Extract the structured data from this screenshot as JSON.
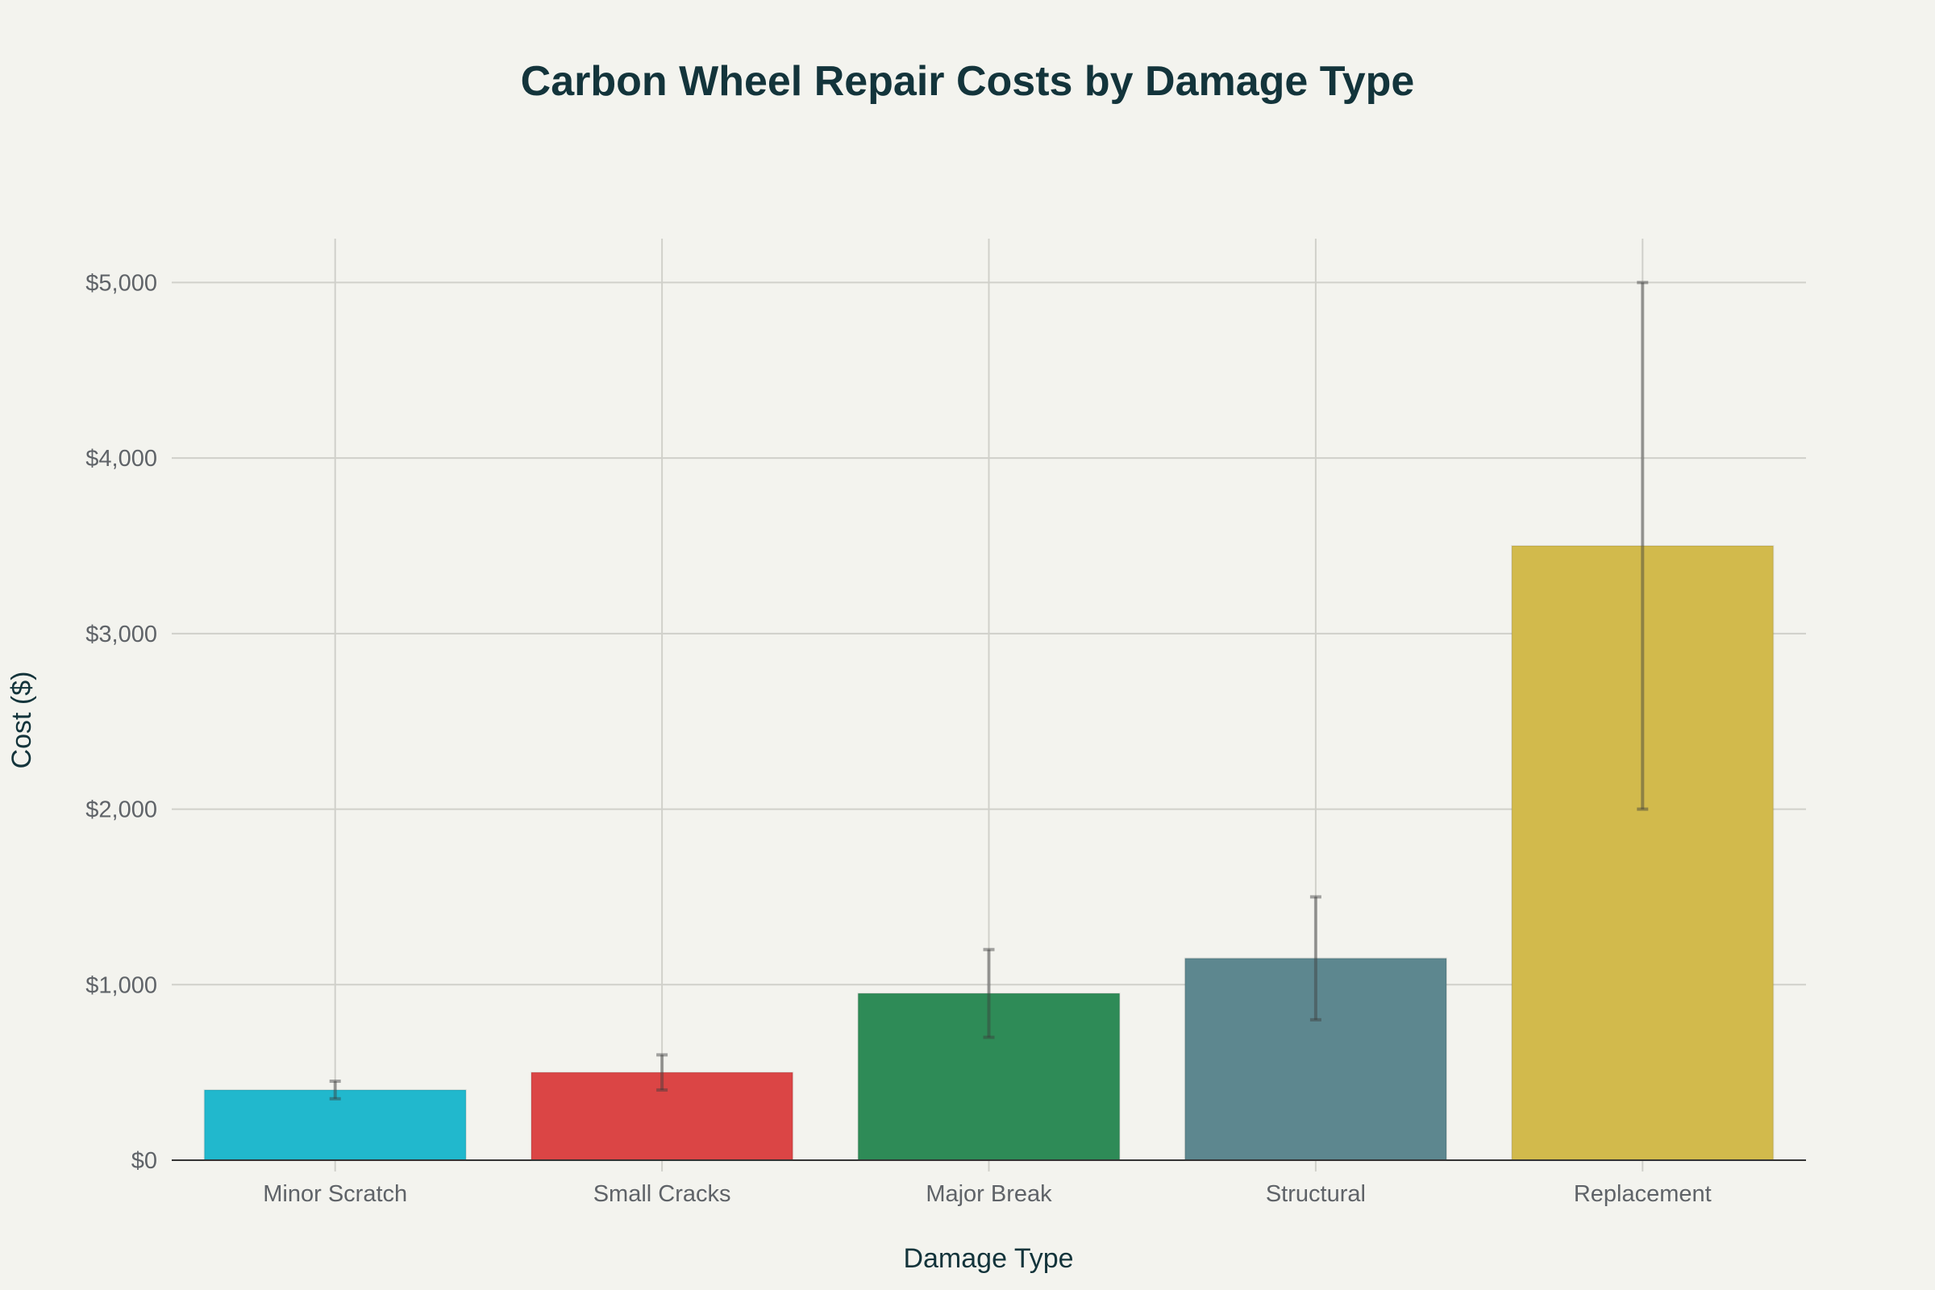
{
  "chart_data": {
    "type": "bar",
    "title": "Carbon Wheel Repair Costs by Damage Type",
    "xlabel": "Damage Type",
    "ylabel": "Cost ($)",
    "categories": [
      "Minor Scratch",
      "Small Cracks",
      "Major Break",
      "Structural",
      "Replacement"
    ],
    "values": [
      400,
      500,
      950,
      1150,
      3500
    ],
    "error_low": [
      350,
      400,
      700,
      800,
      2000
    ],
    "error_high": [
      450,
      600,
      1200,
      1500,
      5000
    ],
    "colors": [
      "#21b8cd",
      "#db4545",
      "#2e8b57",
      "#5d878f",
      "#d2ba4c"
    ],
    "ylim": [
      0,
      5250
    ],
    "yticks": [
      0,
      1000,
      2000,
      3000,
      4000,
      5000
    ],
    "ytick_labels": [
      "$0",
      "$1,000",
      "$2,000",
      "$3,000",
      "$4,000",
      "$5,000"
    ],
    "grid": true,
    "legend": "none"
  }
}
